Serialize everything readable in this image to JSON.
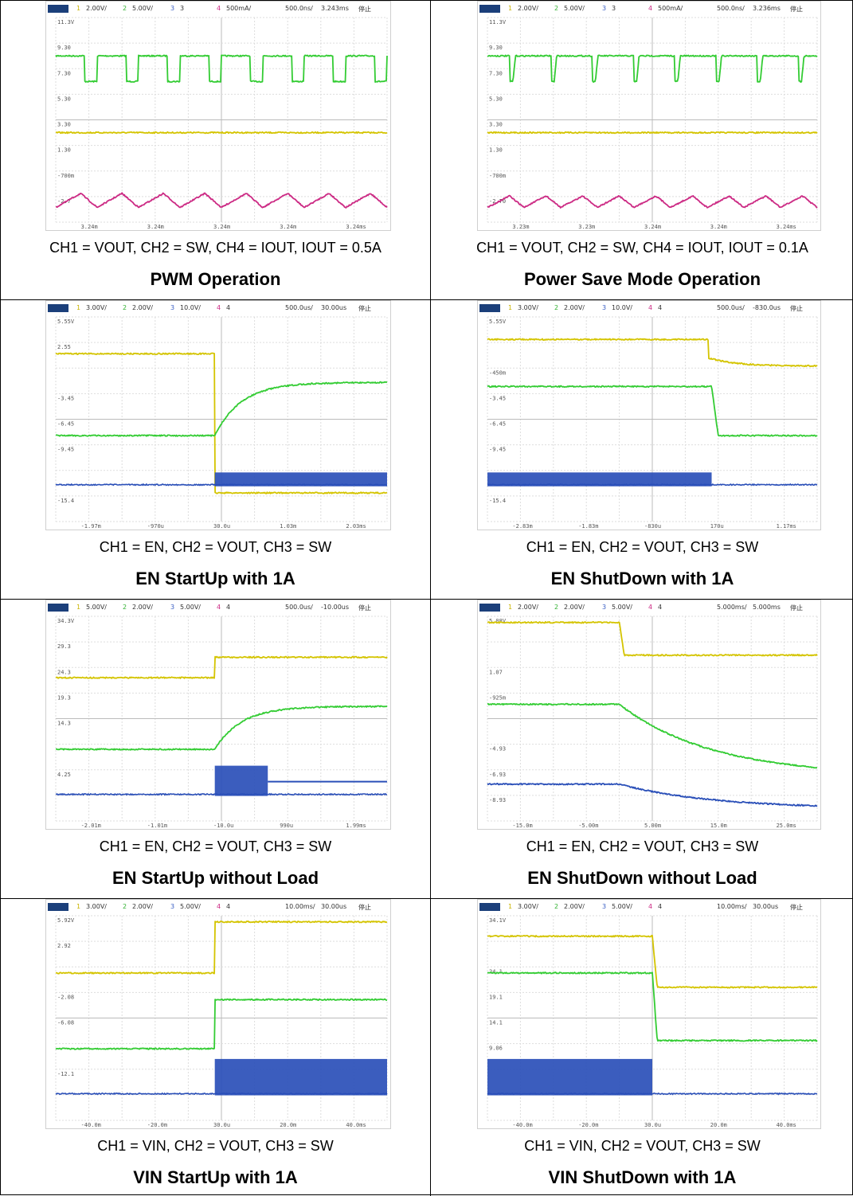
{
  "panels": [
    {
      "caption": "CH1 = VOUT, CH2 = SW, CH4 = IOUT, IOUT = 0.5A",
      "title": "PWM Operation",
      "scope": {
        "ch1": "2.00V/",
        "ch2": "5.00V/",
        "ch3": "3",
        "ch4": "500mA/",
        "timebase": "500.0ns/",
        "delay": "3.243ms",
        "status": "停止"
      },
      "y_labels": [
        "11.3V",
        "9.30",
        "7.30",
        "5.30",
        "3.30",
        "1.30",
        "-700m",
        "-2.7"
      ],
      "x_labels": [
        "3.24m",
        "3.24m",
        "3.24m",
        "3.24m",
        "3.24ms"
      ],
      "traces": [
        {
          "channel": "CH2",
          "color": "#33cc33",
          "shape": "pwm",
          "high": 9.3,
          "low": 7.3,
          "cycles": 8,
          "duty": 0.7
        },
        {
          "channel": "CH1",
          "color": "#d4c400",
          "shape": "flat",
          "level": 3.3
        },
        {
          "channel": "CH4",
          "color": "#cc2a84",
          "shape": "triangle",
          "mid": -2.0,
          "amplitude": 0.55,
          "cycles": 8
        }
      ]
    },
    {
      "caption": "CH1 = VOUT, CH2 = SW, CH4 = IOUT, IOUT = 0.1A",
      "title": "Power Save Mode Operation",
      "scope": {
        "ch1": "2.00V/",
        "ch2": "5.00V/",
        "ch3": "3",
        "ch4": "500mA/",
        "timebase": "500.0ns/",
        "delay": "3.236ms",
        "status": "停止"
      },
      "y_labels": [
        "11.3V",
        "9.30",
        "7.30",
        "5.30",
        "3.30",
        "1.30",
        "-700m",
        "-2.70"
      ],
      "x_labels": [
        "3.23m",
        "3.23m",
        "3.24m",
        "3.24m",
        "3.24ms"
      ],
      "traces": [
        {
          "channel": "CH2",
          "color": "#33cc33",
          "shape": "psm",
          "high": 9.3,
          "low": 7.3,
          "cycles": 8
        },
        {
          "channel": "CH1",
          "color": "#d4c400",
          "shape": "flat",
          "level": 3.3
        },
        {
          "channel": "CH4",
          "color": "#cc2a84",
          "shape": "triangle",
          "mid": -2.1,
          "amplitude": 0.45,
          "cycles": 9
        }
      ]
    },
    {
      "caption": "CH1 = EN, CH2 = VOUT, CH3 = SW",
      "title": "EN StartUp with 1A",
      "scope": {
        "ch1": "3.00V/",
        "ch2": "2.00V/",
        "ch3": "10.0V/",
        "ch4": "4",
        "timebase": "500.0us/",
        "delay": "30.00us",
        "status": "停止"
      },
      "y_labels": [
        "5.55V",
        "2.55",
        "",
        "-3.45",
        "-6.45",
        "-9.45",
        "",
        "-15.4"
      ],
      "x_labels": [
        "-1.97m",
        "-970u",
        "30.0u",
        "1.03m",
        "2.03ms"
      ],
      "traces": [
        {
          "channel": "CH1",
          "color": "#d4c400",
          "shape": "step_up",
          "start": 0.18,
          "end": 0.86,
          "t": 0.48
        },
        {
          "channel": "CH2",
          "color": "#33cc33",
          "shape": "rise_rc",
          "start": 0.58,
          "end": 0.32,
          "t": 0.48,
          "tau": 0.08
        },
        {
          "channel": "CH3",
          "color": "#2a4fb8",
          "shape": "burst_start",
          "level": 0.82,
          "t": 0.48,
          "band": 0.06
        }
      ]
    },
    {
      "caption": "CH1 = EN, CH2 = VOUT, CH3 = SW",
      "title": "EN ShutDown with 1A",
      "scope": {
        "ch1": "3.00V/",
        "ch2": "2.00V/",
        "ch3": "10.0V/",
        "ch4": "4",
        "timebase": "500.0us/",
        "delay": "-830.0us",
        "status": "停止"
      },
      "y_labels": [
        "5.55V",
        "",
        "-450m",
        "-3.45",
        "-6.45",
        "-9.45",
        "",
        "-15.4"
      ],
      "x_labels": [
        "-2.83m",
        "-1.83m",
        "-830u",
        "170u",
        "1.17ms"
      ],
      "traces": [
        {
          "channel": "CH1",
          "color": "#d4c400",
          "shape": "step_down_decay",
          "start": 0.11,
          "mid": 0.2,
          "end": 0.24,
          "t": 0.67
        },
        {
          "channel": "CH2",
          "color": "#33cc33",
          "shape": "fall",
          "start": 0.34,
          "end": 0.58,
          "t": 0.68
        },
        {
          "channel": "CH3",
          "color": "#2a4fb8",
          "shape": "burst_stop",
          "level": 0.82,
          "t": 0.68,
          "band": 0.06
        }
      ]
    },
    {
      "caption": "CH1 = EN, CH2 = VOUT, CH3 = SW",
      "title": "EN StartUp without Load",
      "scope": {
        "ch1": "5.00V/",
        "ch2": "2.00V/",
        "ch3": "5.00V/",
        "ch4": "4",
        "timebase": "500.0us/",
        "delay": "-10.00us",
        "status": "停止"
      },
      "y_labels": [
        "34.3V",
        "29.3",
        "24.3",
        "19.3",
        "14.3",
        "",
        "4.25",
        ""
      ],
      "x_labels": [
        "-2.01m",
        "-1.01m",
        "-10.0u",
        "990u",
        "1.99ms"
      ],
      "traces": [
        {
          "channel": "CH1",
          "color": "#d4c400",
          "shape": "step_up",
          "start": 0.3,
          "end": 0.2,
          "t": 0.48
        },
        {
          "channel": "CH2",
          "color": "#33cc33",
          "shape": "rise_rc",
          "start": 0.65,
          "end": 0.44,
          "t": 0.48,
          "tau": 0.08
        },
        {
          "channel": "CH3",
          "color": "#2a4fb8",
          "shape": "burst_window",
          "level": 0.87,
          "high": 0.8,
          "t": 0.48,
          "t2": 0.64,
          "band": 0.07
        }
      ]
    },
    {
      "caption": "CH1 = EN, CH2 = VOUT, CH3 = SW",
      "title": "EN ShutDown without Load",
      "scope": {
        "ch1": "2.00V/",
        "ch2": "2.00V/",
        "ch3": "5.00V/",
        "ch4": "4",
        "timebase": "5.000ms/",
        "delay": "5.000ms",
        "status": "停止"
      },
      "y_labels": [
        "5.08V",
        "",
        "1.07",
        "-925m",
        "",
        "-4.93",
        "-6.93",
        "-8.93"
      ],
      "x_labels": [
        "-15.0m",
        "-5.00m",
        "5.00m",
        "15.0m",
        "25.0ms"
      ],
      "traces": [
        {
          "channel": "CH1",
          "color": "#d4c400",
          "shape": "step_down_flat",
          "start": 0.03,
          "end": 0.19,
          "t": 0.4
        },
        {
          "channel": "CH2",
          "color": "#33cc33",
          "shape": "decay",
          "start": 0.43,
          "end": 0.78,
          "t": 0.4
        },
        {
          "channel": "CH3",
          "color": "#2a4fb8",
          "shape": "decay",
          "start": 0.82,
          "end": 0.94,
          "t": 0.4
        }
      ]
    },
    {
      "caption": "CH1 = VIN, CH2 = VOUT, CH3 = SW",
      "title": "VIN StartUp with 1A",
      "scope": {
        "ch1": "3.00V/",
        "ch2": "2.00V/",
        "ch3": "5.00V/",
        "ch4": "4",
        "timebase": "10.00ms/",
        "delay": "30.00us",
        "status": "停止"
      },
      "y_labels": [
        "5.92V",
        "2.92",
        "",
        "-2.08",
        "-6.08",
        "",
        "-12.1",
        ""
      ],
      "x_labels": [
        "-40.0m",
        "-20.0m",
        "30.0u",
        "20.0m",
        "40.0ms"
      ],
      "traces": [
        {
          "channel": "CH1",
          "color": "#d4c400",
          "shape": "step_up",
          "start": 0.28,
          "end": 0.03,
          "t": 0.48
        },
        {
          "channel": "CH2",
          "color": "#33cc33",
          "shape": "step_up",
          "start": 0.65,
          "end": 0.41,
          "t": 0.48
        },
        {
          "channel": "CH3",
          "color": "#2a4fb8",
          "shape": "burst_start",
          "level": 0.87,
          "t": 0.48,
          "band": 0.17
        }
      ]
    },
    {
      "caption": "CH1 = VIN, CH2 = VOUT, CH3 = SW",
      "title": "VIN ShutDown with 1A",
      "scope": {
        "ch1": "3.00V/",
        "ch2": "2.00V/",
        "ch3": "5.00V/",
        "ch4": "4",
        "timebase": "10.00ms/",
        "delay": "30.00us",
        "status": "停止"
      },
      "y_labels": [
        "34.1V",
        "",
        "24.1",
        "19.1",
        "14.1",
        "9.06",
        "",
        ""
      ],
      "x_labels": [
        "-40.0m",
        "-20.0m",
        "30.0u",
        "20.0m",
        "40.0ms"
      ],
      "traces": [
        {
          "channel": "CH1",
          "color": "#d4c400",
          "shape": "step_down_flat",
          "start": 0.1,
          "end": 0.35,
          "t": 0.5
        },
        {
          "channel": "CH2",
          "color": "#33cc33",
          "shape": "step_down_flat",
          "start": 0.28,
          "end": 0.61,
          "t": 0.5
        },
        {
          "channel": "CH3",
          "color": "#2a4fb8",
          "shape": "burst_stop",
          "level": 0.87,
          "t": 0.5,
          "band": 0.17
        }
      ]
    }
  ]
}
